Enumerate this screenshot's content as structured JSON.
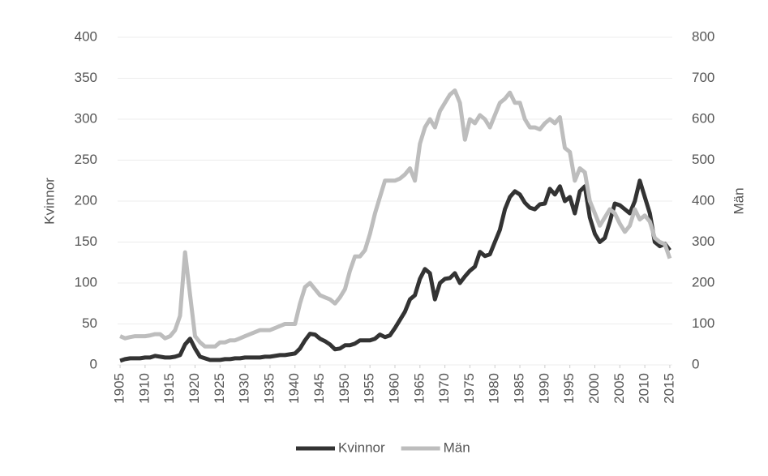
{
  "chart_data": {
    "type": "line",
    "y_label": "Kvinnor",
    "y2_label": "Män",
    "x": [
      1905,
      1906,
      1907,
      1908,
      1909,
      1910,
      1911,
      1912,
      1913,
      1914,
      1915,
      1916,
      1917,
      1918,
      1919,
      1920,
      1921,
      1922,
      1923,
      1924,
      1925,
      1926,
      1927,
      1928,
      1929,
      1930,
      1931,
      1932,
      1933,
      1934,
      1935,
      1936,
      1937,
      1938,
      1939,
      1940,
      1941,
      1942,
      1943,
      1944,
      1945,
      1946,
      1947,
      1948,
      1949,
      1950,
      1951,
      1952,
      1953,
      1954,
      1955,
      1956,
      1957,
      1958,
      1959,
      1960,
      1961,
      1962,
      1963,
      1964,
      1965,
      1966,
      1967,
      1968,
      1969,
      1970,
      1971,
      1972,
      1973,
      1974,
      1975,
      1976,
      1977,
      1978,
      1979,
      1980,
      1981,
      1982,
      1983,
      1984,
      1985,
      1986,
      1987,
      1988,
      1989,
      1990,
      1991,
      1992,
      1993,
      1994,
      1995,
      1996,
      1997,
      1998,
      1999,
      2000,
      2001,
      2002,
      2003,
      2004,
      2005,
      2006,
      2007,
      2008,
      2009,
      2010,
      2011,
      2012,
      2013,
      2014,
      2015
    ],
    "series": [
      {
        "name": "Kvinnor",
        "color": "#333333",
        "axis": "y",
        "values": [
          5,
          7,
          8,
          8,
          8,
          9,
          9,
          11,
          10,
          9,
          9,
          10,
          12,
          25,
          32,
          20,
          10,
          8,
          6,
          6,
          6,
          7,
          7,
          8,
          8,
          9,
          9,
          9,
          9,
          10,
          10,
          11,
          12,
          12,
          13,
          14,
          20,
          30,
          38,
          37,
          32,
          29,
          25,
          19,
          20,
          24,
          24,
          26,
          30,
          30,
          30,
          32,
          37,
          34,
          36,
          45,
          55,
          65,
          80,
          85,
          105,
          117,
          112,
          80,
          100,
          105,
          106,
          112,
          100,
          108,
          115,
          120,
          138,
          133,
          135,
          150,
          165,
          190,
          205,
          212,
          208,
          198,
          192,
          190,
          196,
          197,
          215,
          208,
          218,
          200,
          205,
          185,
          212,
          218,
          180,
          160,
          150,
          155,
          175,
          197,
          195,
          190,
          185,
          200,
          225,
          205,
          185,
          150,
          145,
          148,
          140
        ]
      },
      {
        "name": "Män",
        "color": "#bdbdbd",
        "axis": "y2",
        "values": [
          70,
          65,
          68,
          70,
          70,
          70,
          72,
          75,
          75,
          65,
          70,
          85,
          120,
          275,
          170,
          70,
          55,
          45,
          45,
          45,
          55,
          55,
          60,
          60,
          65,
          70,
          75,
          80,
          85,
          85,
          85,
          90,
          95,
          100,
          100,
          100,
          150,
          190,
          200,
          185,
          170,
          165,
          160,
          150,
          165,
          185,
          230,
          265,
          265,
          280,
          320,
          370,
          410,
          450,
          450,
          450,
          455,
          465,
          480,
          450,
          540,
          580,
          600,
          580,
          620,
          640,
          660,
          670,
          640,
          550,
          600,
          590,
          610,
          600,
          580,
          610,
          640,
          650,
          665,
          640,
          640,
          600,
          580,
          580,
          575,
          590,
          600,
          590,
          605,
          530,
          520,
          450,
          480,
          470,
          400,
          370,
          340,
          360,
          380,
          370,
          345,
          325,
          340,
          380,
          355,
          365,
          350,
          310,
          300,
          295,
          260
        ]
      }
    ],
    "xlim": [
      1904.5,
      2015.5
    ],
    "xticks": [
      1905,
      1910,
      1915,
      1920,
      1925,
      1930,
      1935,
      1940,
      1945,
      1950,
      1955,
      1960,
      1965,
      1970,
      1975,
      1980,
      1985,
      1990,
      1995,
      2000,
      2005,
      2010,
      2015
    ],
    "ylim": [
      0,
      400
    ],
    "yticks": [
      0,
      50,
      100,
      150,
      200,
      250,
      300,
      350,
      400
    ],
    "y2lim": [
      0,
      800
    ],
    "y2ticks": [
      0,
      100,
      200,
      300,
      400,
      500,
      600,
      700,
      800
    ],
    "grid": true,
    "legend": "bottom"
  }
}
